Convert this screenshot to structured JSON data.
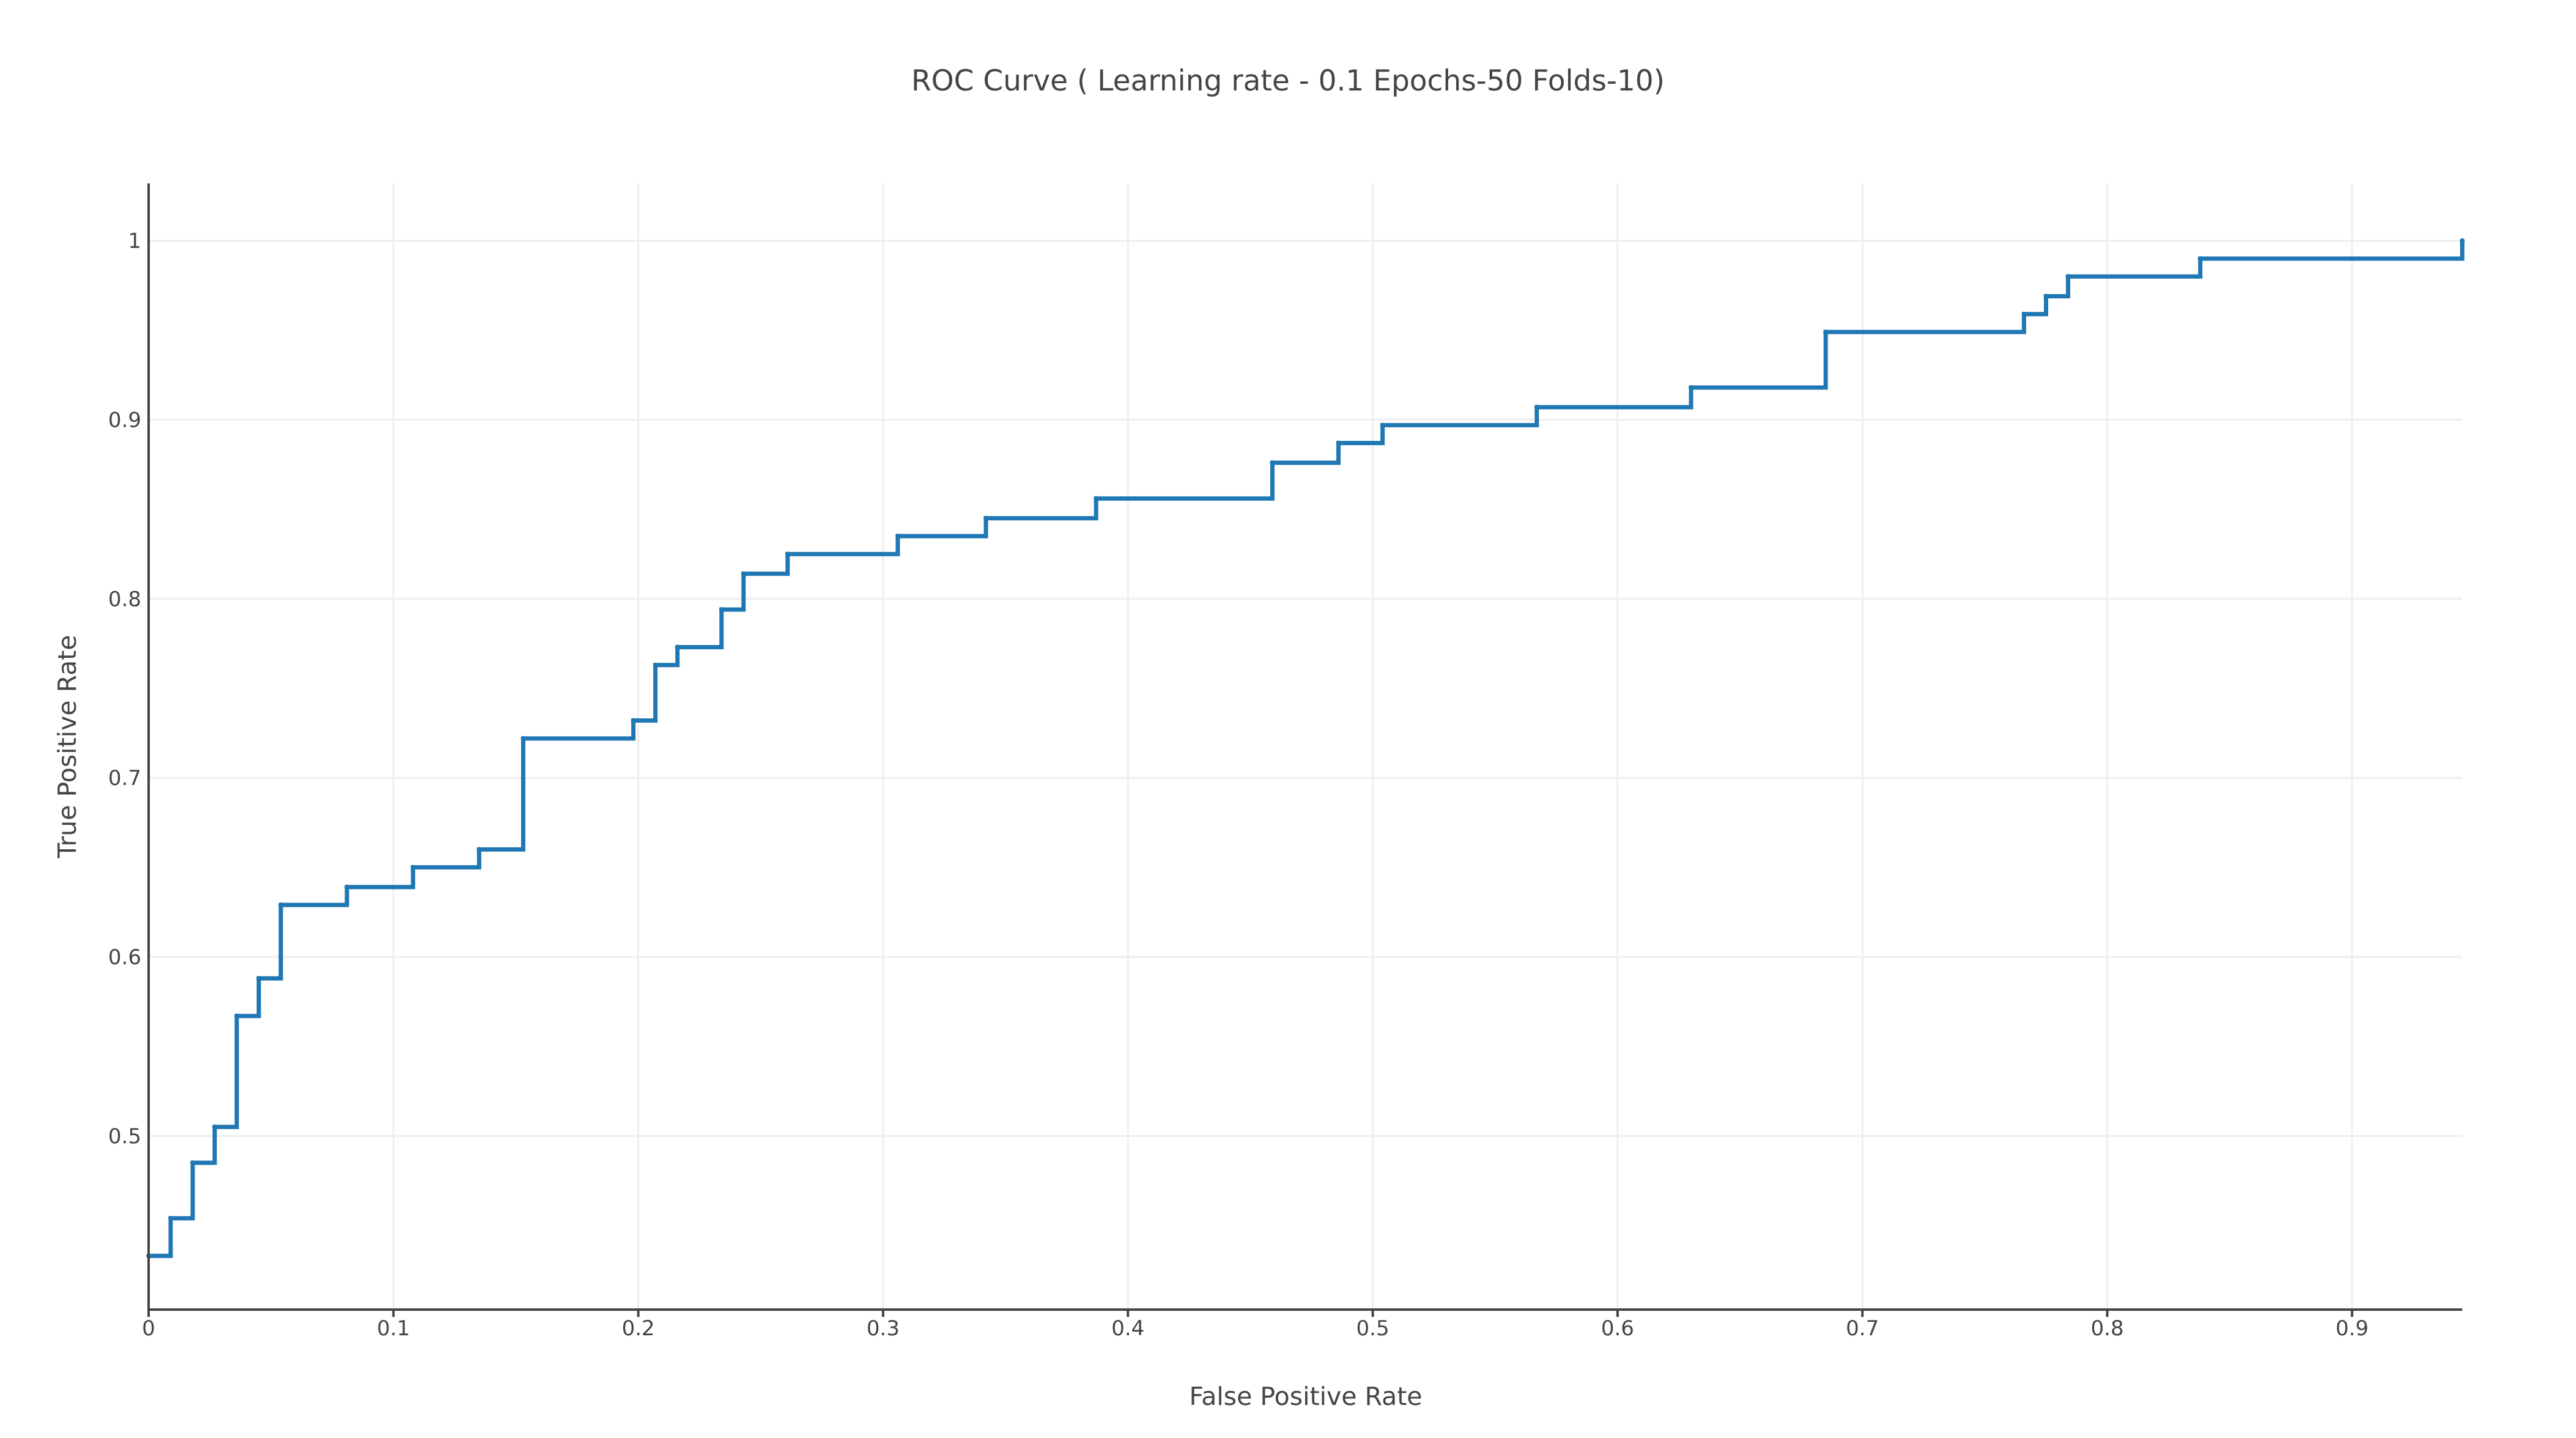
{
  "chart_data": {
    "type": "line",
    "title": "ROC Curve ( Learning rate - 0.1 Epochs-50 Folds-10)",
    "xlabel": "False Positive Rate",
    "ylabel": "True Positive Rate",
    "xlim": [
      0,
      0.945
    ],
    "ylim": [
      0.403,
      1.032
    ],
    "xticks": [
      0,
      0.1,
      0.2,
      0.3,
      0.4,
      0.5,
      0.6,
      0.7,
      0.8,
      0.9
    ],
    "xtick_labels": [
      "0",
      "0.1",
      "0.2",
      "0.3",
      "0.4",
      "0.5",
      "0.6",
      "0.7",
      "0.8",
      "0.9"
    ],
    "yticks": [
      0.5,
      0.6,
      0.7,
      0.8,
      0.9,
      1
    ],
    "ytick_labels": [
      "0.5",
      "0.6",
      "0.7",
      "0.8",
      "0.9",
      "1"
    ],
    "grid": true,
    "legend": "none",
    "color": "#1f77b4",
    "series": [
      {
        "line_shape": "step-after",
        "x": [
          0,
          0.009,
          0.018,
          0.027,
          0.036,
          0.045,
          0.054,
          0.081,
          0.108,
          0.135,
          0.153,
          0.198,
          0.207,
          0.216,
          0.234,
          0.243,
          0.261,
          0.306,
          0.342,
          0.387,
          0.459,
          0.486,
          0.504,
          0.567,
          0.63,
          0.685,
          0.766,
          0.775,
          0.784,
          0.838,
          0.945
        ],
        "y": [
          0.433,
          0.454,
          0.485,
          0.505,
          0.567,
          0.588,
          0.629,
          0.639,
          0.65,
          0.66,
          0.722,
          0.732,
          0.763,
          0.773,
          0.794,
          0.814,
          0.825,
          0.835,
          0.845,
          0.856,
          0.876,
          0.887,
          0.897,
          0.907,
          0.918,
          0.949,
          0.959,
          0.969,
          0.98,
          0.99,
          1.0
        ]
      }
    ]
  }
}
